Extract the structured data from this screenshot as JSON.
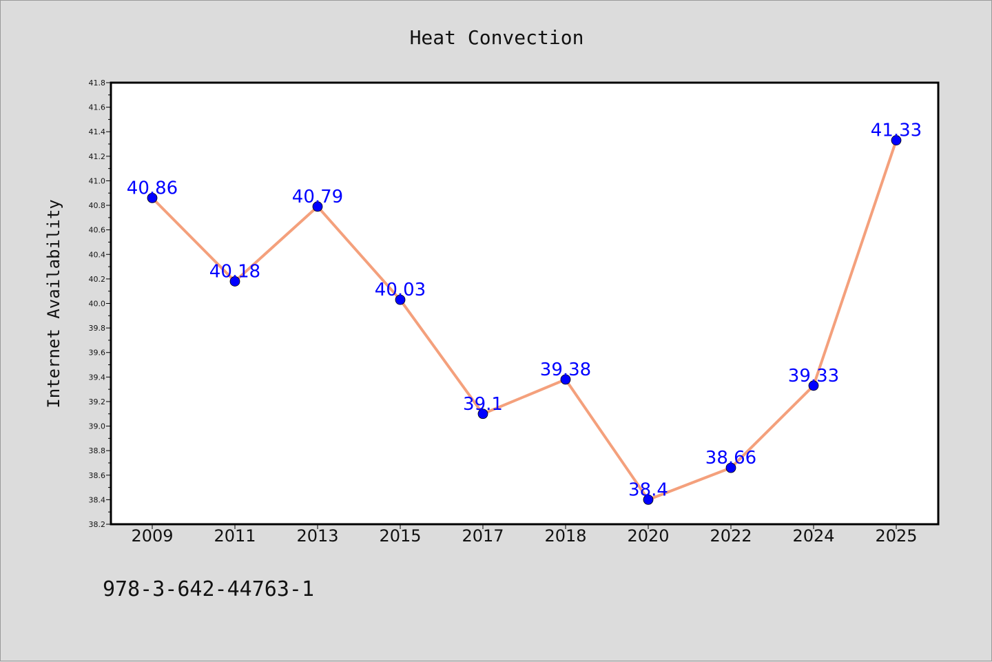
{
  "chart_data": {
    "type": "line",
    "title": "Heat Convection",
    "xlabel": "",
    "ylabel": "Internet Availability",
    "categories": [
      "2009",
      "2011",
      "2013",
      "2015",
      "2017",
      "2018",
      "2020",
      "2022",
      "2024",
      "2025"
    ],
    "series": [
      {
        "values": [
          40.86,
          40.18,
          40.79,
          40.03,
          39.1,
          39.38,
          38.4,
          38.66,
          39.33,
          41.33
        ],
        "labels": [
          "40.86",
          "40.18",
          "40.79",
          "40.03",
          "39.1",
          "39.38",
          "38.4",
          "38.66",
          "39.33",
          "41.33"
        ]
      }
    ],
    "ylim": [
      38.2,
      41.8
    ],
    "yticks": [
      "38.2",
      "38.4",
      "38.6",
      "38.8",
      "39.0",
      "39.2",
      "39.4",
      "39.6",
      "39.8",
      "40.0",
      "40.2",
      "40.4",
      "40.6",
      "40.8",
      "41.0",
      "41.2",
      "41.4",
      "41.6",
      "41.8"
    ],
    "grid": false,
    "colors": {
      "line": "#f4a07c",
      "marker": "#0000ff",
      "data_label": "#0000ff",
      "background": "#dcdcdc",
      "plot_background": "#ffffff"
    }
  },
  "footer_text": "978-3-642-44763-1"
}
